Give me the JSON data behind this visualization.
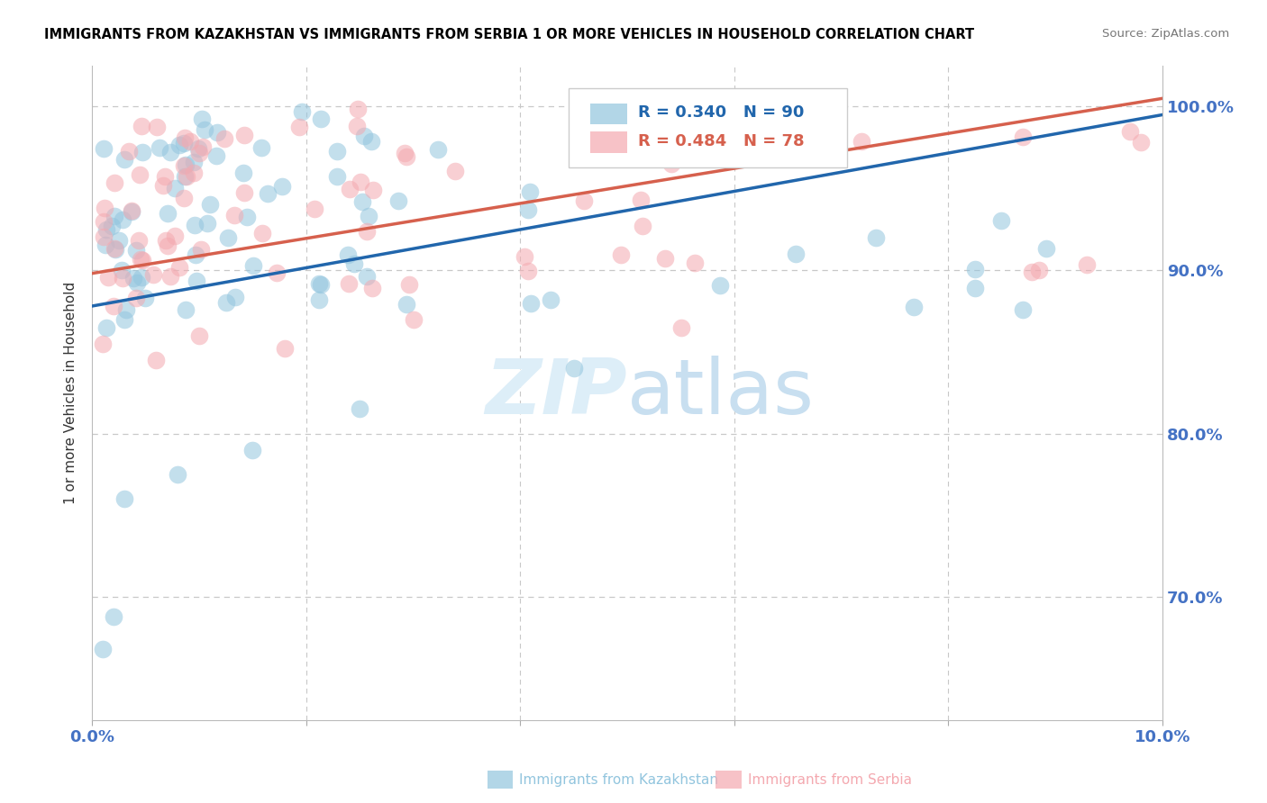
{
  "title": "IMMIGRANTS FROM KAZAKHSTAN VS IMMIGRANTS FROM SERBIA 1 OR MORE VEHICLES IN HOUSEHOLD CORRELATION CHART",
  "source": "Source: ZipAtlas.com",
  "ylabel": "1 or more Vehicles in Household",
  "xmin": 0.0,
  "xmax": 0.1,
  "ymin": 0.625,
  "ymax": 1.025,
  "kazakhstan_color": "#92c5de",
  "serbia_color": "#f4a9b0",
  "trend_kaz_color": "#2166ac",
  "trend_serb_color": "#d6604d",
  "legend_r_kaz": "R = 0.340",
  "legend_n_kaz": "N = 90",
  "legend_r_serb": "R = 0.484",
  "legend_n_serb": "N = 78",
  "watermark_zip": "ZIP",
  "watermark_atlas": "atlas",
  "background_color": "#ffffff",
  "grid_color": "#c8c8c8",
  "axis_label_color": "#4472c4",
  "kaz_trend_x0": 0.0,
  "kaz_trend_x1": 0.1,
  "kaz_trend_y0": 0.878,
  "kaz_trend_y1": 0.995,
  "serb_trend_x0": 0.0,
  "serb_trend_x1": 0.1,
  "serb_trend_y0": 0.898,
  "serb_trend_y1": 1.005
}
